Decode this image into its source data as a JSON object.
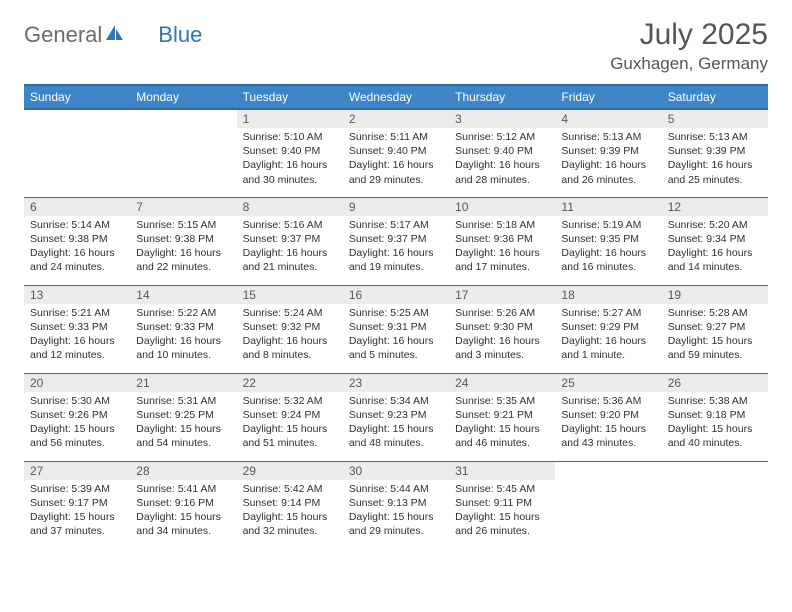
{
  "brand": {
    "part1": "General",
    "part2": "Blue"
  },
  "title": "July 2025",
  "location": "Guxhagen, Germany",
  "colors": {
    "header_bg": "#3d85c6",
    "header_border": "#2f6aa0",
    "daynum_bg": "#ececec",
    "text_gray": "#555555",
    "text_dark": "#303030",
    "brand_gray": "#6b6b6b",
    "brand_blue": "#2f75b5"
  },
  "dayNames": [
    "Sunday",
    "Monday",
    "Tuesday",
    "Wednesday",
    "Thursday",
    "Friday",
    "Saturday"
  ],
  "firstDayOffset": 2,
  "days": [
    {
      "n": 1,
      "sunrise": "5:10 AM",
      "sunset": "9:40 PM",
      "daylight": "16 hours and 30 minutes."
    },
    {
      "n": 2,
      "sunrise": "5:11 AM",
      "sunset": "9:40 PM",
      "daylight": "16 hours and 29 minutes."
    },
    {
      "n": 3,
      "sunrise": "5:12 AM",
      "sunset": "9:40 PM",
      "daylight": "16 hours and 28 minutes."
    },
    {
      "n": 4,
      "sunrise": "5:13 AM",
      "sunset": "9:39 PM",
      "daylight": "16 hours and 26 minutes."
    },
    {
      "n": 5,
      "sunrise": "5:13 AM",
      "sunset": "9:39 PM",
      "daylight": "16 hours and 25 minutes."
    },
    {
      "n": 6,
      "sunrise": "5:14 AM",
      "sunset": "9:38 PM",
      "daylight": "16 hours and 24 minutes."
    },
    {
      "n": 7,
      "sunrise": "5:15 AM",
      "sunset": "9:38 PM",
      "daylight": "16 hours and 22 minutes."
    },
    {
      "n": 8,
      "sunrise": "5:16 AM",
      "sunset": "9:37 PM",
      "daylight": "16 hours and 21 minutes."
    },
    {
      "n": 9,
      "sunrise": "5:17 AM",
      "sunset": "9:37 PM",
      "daylight": "16 hours and 19 minutes."
    },
    {
      "n": 10,
      "sunrise": "5:18 AM",
      "sunset": "9:36 PM",
      "daylight": "16 hours and 17 minutes."
    },
    {
      "n": 11,
      "sunrise": "5:19 AM",
      "sunset": "9:35 PM",
      "daylight": "16 hours and 16 minutes."
    },
    {
      "n": 12,
      "sunrise": "5:20 AM",
      "sunset": "9:34 PM",
      "daylight": "16 hours and 14 minutes."
    },
    {
      "n": 13,
      "sunrise": "5:21 AM",
      "sunset": "9:33 PM",
      "daylight": "16 hours and 12 minutes."
    },
    {
      "n": 14,
      "sunrise": "5:22 AM",
      "sunset": "9:33 PM",
      "daylight": "16 hours and 10 minutes."
    },
    {
      "n": 15,
      "sunrise": "5:24 AM",
      "sunset": "9:32 PM",
      "daylight": "16 hours and 8 minutes."
    },
    {
      "n": 16,
      "sunrise": "5:25 AM",
      "sunset": "9:31 PM",
      "daylight": "16 hours and 5 minutes."
    },
    {
      "n": 17,
      "sunrise": "5:26 AM",
      "sunset": "9:30 PM",
      "daylight": "16 hours and 3 minutes."
    },
    {
      "n": 18,
      "sunrise": "5:27 AM",
      "sunset": "9:29 PM",
      "daylight": "16 hours and 1 minute."
    },
    {
      "n": 19,
      "sunrise": "5:28 AM",
      "sunset": "9:27 PM",
      "daylight": "15 hours and 59 minutes."
    },
    {
      "n": 20,
      "sunrise": "5:30 AM",
      "sunset": "9:26 PM",
      "daylight": "15 hours and 56 minutes."
    },
    {
      "n": 21,
      "sunrise": "5:31 AM",
      "sunset": "9:25 PM",
      "daylight": "15 hours and 54 minutes."
    },
    {
      "n": 22,
      "sunrise": "5:32 AM",
      "sunset": "9:24 PM",
      "daylight": "15 hours and 51 minutes."
    },
    {
      "n": 23,
      "sunrise": "5:34 AM",
      "sunset": "9:23 PM",
      "daylight": "15 hours and 48 minutes."
    },
    {
      "n": 24,
      "sunrise": "5:35 AM",
      "sunset": "9:21 PM",
      "daylight": "15 hours and 46 minutes."
    },
    {
      "n": 25,
      "sunrise": "5:36 AM",
      "sunset": "9:20 PM",
      "daylight": "15 hours and 43 minutes."
    },
    {
      "n": 26,
      "sunrise": "5:38 AM",
      "sunset": "9:18 PM",
      "daylight": "15 hours and 40 minutes."
    },
    {
      "n": 27,
      "sunrise": "5:39 AM",
      "sunset": "9:17 PM",
      "daylight": "15 hours and 37 minutes."
    },
    {
      "n": 28,
      "sunrise": "5:41 AM",
      "sunset": "9:16 PM",
      "daylight": "15 hours and 34 minutes."
    },
    {
      "n": 29,
      "sunrise": "5:42 AM",
      "sunset": "9:14 PM",
      "daylight": "15 hours and 32 minutes."
    },
    {
      "n": 30,
      "sunrise": "5:44 AM",
      "sunset": "9:13 PM",
      "daylight": "15 hours and 29 minutes."
    },
    {
      "n": 31,
      "sunrise": "5:45 AM",
      "sunset": "9:11 PM",
      "daylight": "15 hours and 26 minutes."
    }
  ]
}
